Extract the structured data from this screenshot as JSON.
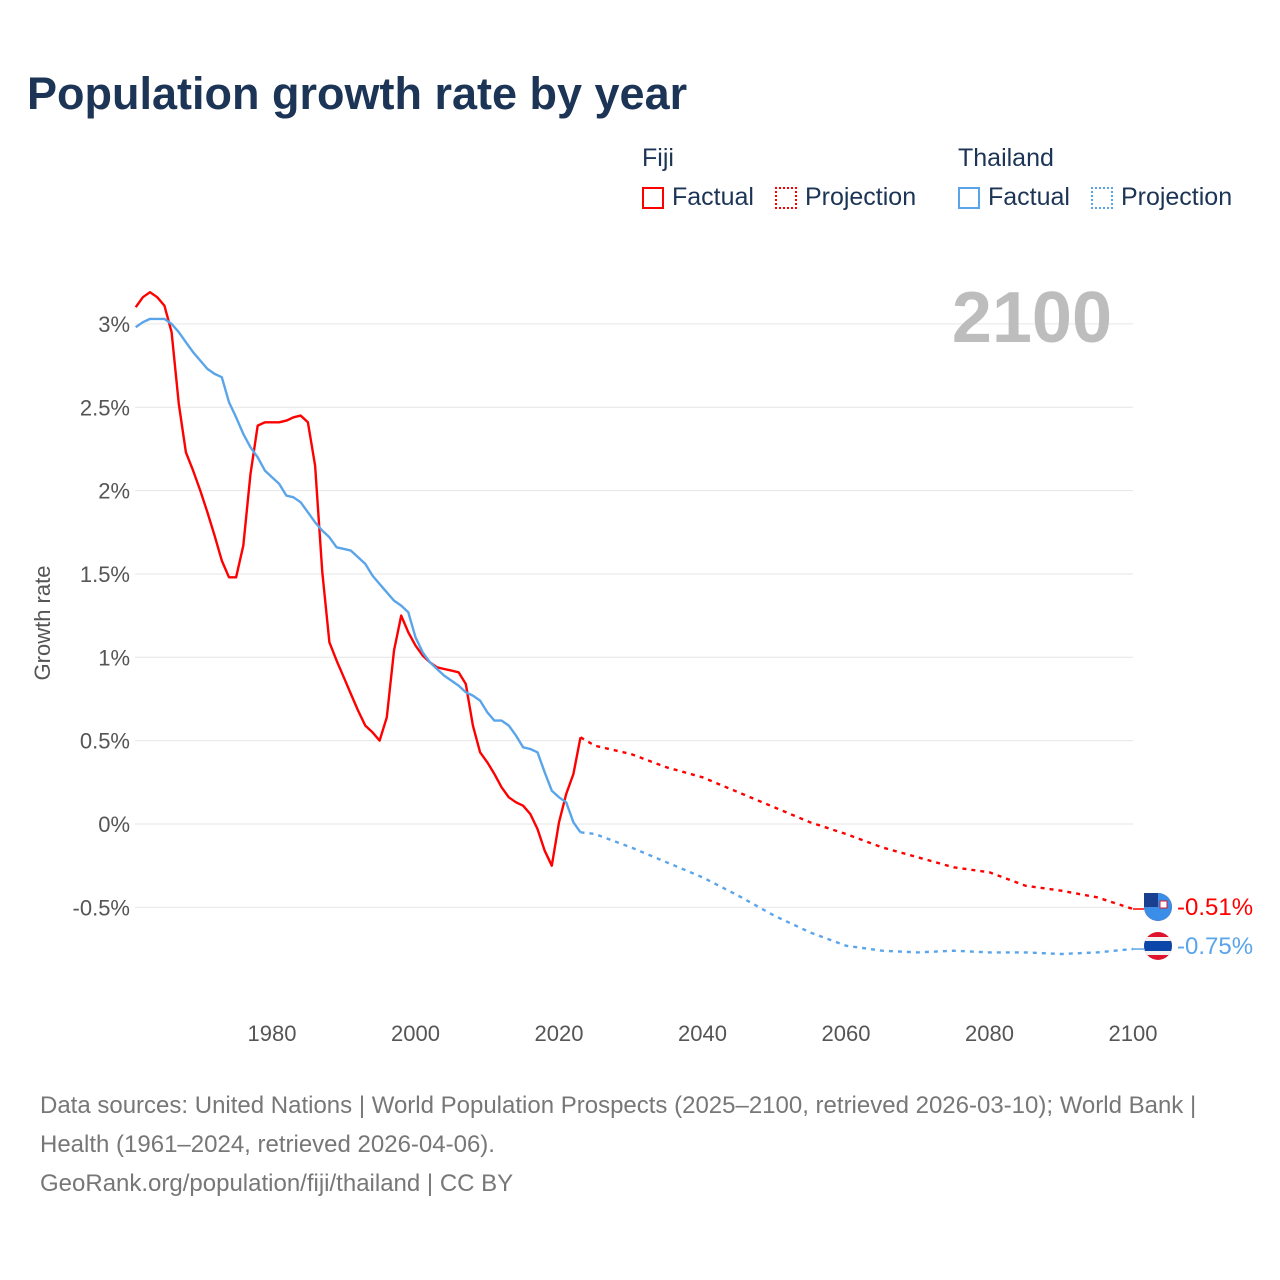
{
  "title": "Population growth rate by year",
  "legend": [
    {
      "name": "Fiji",
      "color": "#ff0000",
      "factual": "Factual",
      "projection": "Projection"
    },
    {
      "name": "Thailand",
      "color": "#5aa5ea",
      "factual": "Factual",
      "projection": "Projection"
    }
  ],
  "chart_data": {
    "type": "line",
    "title": "Population growth rate by year",
    "ylabel": "Growth rate",
    "xlabel": "",
    "year_indicator": "2100",
    "xlim": [
      1961,
      2100
    ],
    "ylim": [
      -1.0,
      3.3
    ],
    "xticks": [
      1980,
      2000,
      2020,
      2040,
      2060,
      2080,
      2100
    ],
    "xtick_labels": [
      "1980",
      "2000",
      "2020",
      "2040",
      "2060",
      "2080",
      "2100"
    ],
    "yticks": [
      -0.5,
      0,
      0.5,
      1,
      1.5,
      2,
      2.5,
      3
    ],
    "ytick_labels": [
      "-0.5%",
      "0%",
      "0.5%",
      "1%",
      "1.5%",
      "2%",
      "2.5%",
      "3%"
    ],
    "grid": true,
    "legend_position": "top-right",
    "series": [
      {
        "name": "Fiji",
        "color": "#ff0000",
        "end_label": "-0.51%",
        "factual": {
          "x": [
            1961,
            1962,
            1963,
            1964,
            1965,
            1966,
            1967,
            1968,
            1969,
            1970,
            1971,
            1972,
            1973,
            1974,
            1975,
            1976,
            1977,
            1978,
            1979,
            1980,
            1981,
            1982,
            1983,
            1984,
            1985,
            1986,
            1987,
            1988,
            1989,
            1990,
            1991,
            1992,
            1993,
            1994,
            1995,
            1996,
            1997,
            1998,
            1999,
            2000,
            2001,
            2002,
            2003,
            2004,
            2005,
            2006,
            2007,
            2008,
            2009,
            2010,
            2011,
            2012,
            2013,
            2014,
            2015,
            2016,
            2017,
            2018,
            2019,
            2020,
            2021,
            2022,
            2023
          ],
          "y": [
            3.1,
            3.16,
            3.19,
            3.16,
            3.11,
            2.95,
            2.52,
            2.23,
            2.12,
            2.0,
            1.87,
            1.73,
            1.58,
            1.48,
            1.48,
            1.67,
            2.1,
            2.39,
            2.41,
            2.41,
            2.41,
            2.42,
            2.44,
            2.45,
            2.41,
            2.15,
            1.51,
            1.09,
            0.98,
            0.88,
            0.78,
            0.68,
            0.59,
            0.55,
            0.5,
            0.64,
            1.04,
            1.25,
            1.15,
            1.07,
            1.01,
            0.97,
            0.94,
            0.93,
            0.92,
            0.91,
            0.84,
            0.59,
            0.43,
            0.37,
            0.3,
            0.22,
            0.16,
            0.13,
            0.11,
            0.06,
            -0.03,
            -0.16,
            -0.25,
            0.01,
            0.18,
            0.3,
            0.52
          ]
        },
        "projection": {
          "x": [
            2023,
            2025,
            2030,
            2035,
            2040,
            2045,
            2050,
            2055,
            2060,
            2065,
            2070,
            2075,
            2080,
            2085,
            2090,
            2095,
            2100
          ],
          "y": [
            0.52,
            0.47,
            0.42,
            0.34,
            0.28,
            0.19,
            0.1,
            0.01,
            -0.06,
            -0.14,
            -0.2,
            -0.26,
            -0.29,
            -0.37,
            -0.4,
            -0.44,
            -0.51
          ]
        }
      },
      {
        "name": "Thailand",
        "color": "#5aa5ea",
        "end_label": "-0.75%",
        "factual": {
          "x": [
            1961,
            1962,
            1963,
            1964,
            1965,
            1966,
            1967,
            1968,
            1969,
            1970,
            1971,
            1972,
            1973,
            1974,
            1975,
            1976,
            1977,
            1978,
            1979,
            1980,
            1981,
            1982,
            1983,
            1984,
            1985,
            1986,
            1987,
            1988,
            1989,
            1990,
            1991,
            1992,
            1993,
            1994,
            1995,
            1996,
            1997,
            1998,
            1999,
            2000,
            2001,
            2002,
            2003,
            2004,
            2005,
            2006,
            2007,
            2008,
            2009,
            2010,
            2011,
            2012,
            2013,
            2014,
            2015,
            2016,
            2017,
            2018,
            2019,
            2020,
            2021,
            2022,
            2023
          ],
          "y": [
            2.98,
            3.01,
            3.03,
            3.03,
            3.03,
            3.0,
            2.95,
            2.89,
            2.83,
            2.78,
            2.73,
            2.7,
            2.68,
            2.53,
            2.44,
            2.34,
            2.26,
            2.2,
            2.12,
            2.08,
            2.04,
            1.97,
            1.96,
            1.93,
            1.87,
            1.81,
            1.76,
            1.72,
            1.66,
            1.65,
            1.64,
            1.6,
            1.56,
            1.49,
            1.44,
            1.39,
            1.34,
            1.31,
            1.27,
            1.12,
            1.03,
            0.97,
            0.93,
            0.89,
            0.86,
            0.83,
            0.79,
            0.77,
            0.74,
            0.67,
            0.62,
            0.62,
            0.59,
            0.53,
            0.46,
            0.45,
            0.43,
            0.31,
            0.2,
            0.16,
            0.13,
            0.01,
            -0.05
          ]
        },
        "projection": {
          "x": [
            2023,
            2025,
            2030,
            2035,
            2040,
            2045,
            2050,
            2055,
            2060,
            2065,
            2070,
            2075,
            2080,
            2085,
            2090,
            2095,
            2100
          ],
          "y": [
            -0.05,
            -0.06,
            -0.14,
            -0.23,
            -0.32,
            -0.43,
            -0.55,
            -0.65,
            -0.73,
            -0.76,
            -0.77,
            -0.76,
            -0.77,
            -0.77,
            -0.78,
            -0.77,
            -0.75
          ]
        }
      }
    ]
  },
  "footer": {
    "sources": "Data sources: United Nations | World Population Prospects (2025–2100, retrieved 2026-03-10); World Bank | Health (1961–2024, retrieved 2026-04-06).",
    "credit": "GeoRank.org/population/fiji/thailand | CC BY"
  }
}
